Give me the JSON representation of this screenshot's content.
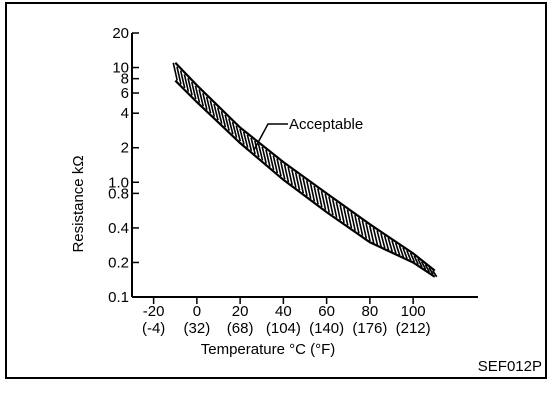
{
  "chart_data": {
    "type": "area",
    "xlabel": "Temperature °C (°F)",
    "ylabel": "Resistance kΩ",
    "x_ticks": [
      {
        "c": "-20",
        "f": "(-4)"
      },
      {
        "c": "0",
        "f": "(32)"
      },
      {
        "c": "20",
        "f": "(68)"
      },
      {
        "c": "40",
        "f": "(104)"
      },
      {
        "c": "60",
        "f": "(140)"
      },
      {
        "c": "80",
        "f": "(176)"
      },
      {
        "c": "100",
        "f": "(212)"
      }
    ],
    "y_ticks": [
      "20",
      "10",
      "8",
      "6",
      "4",
      "2",
      "1.0",
      "0.8",
      "0.4",
      "0.2",
      "0.1"
    ],
    "y_scale": "log",
    "ylim": [
      0.1,
      20
    ],
    "xlim": [
      -30,
      130
    ],
    "series": [
      {
        "name": "Acceptable",
        "x": [
          -10,
          0,
          20,
          40,
          60,
          80,
          100,
          110
        ],
        "upper": [
          11.0,
          7.0,
          3.0,
          1.5,
          0.8,
          0.43,
          0.24,
          0.17
        ],
        "lower": [
          7.7,
          5.0,
          2.2,
          1.05,
          0.55,
          0.3,
          0.2,
          0.15
        ]
      }
    ],
    "annotation": "Acceptable",
    "grid": false
  },
  "figure_code": "SEF012P"
}
